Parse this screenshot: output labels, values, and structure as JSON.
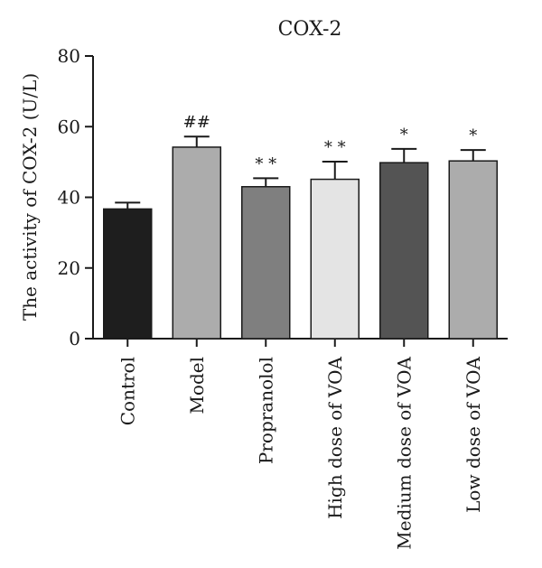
{
  "chart_data": {
    "type": "bar",
    "title": "COX-2",
    "xlabel": "",
    "ylabel": "The activity of COX-2 (U/L)",
    "ylim": [
      0,
      80
    ],
    "yticks": [
      0,
      20,
      40,
      60,
      80
    ],
    "grid": false,
    "categories": [
      "Control",
      "Model",
      "Propranolol",
      "High dose of VOA",
      "Medium dose of VOA",
      "Low dose of VOA"
    ],
    "values": [
      36.7,
      54.2,
      43.0,
      45.1,
      49.8,
      50.3
    ],
    "errors": [
      1.8,
      3.0,
      2.4,
      5.0,
      3.9,
      3.1
    ],
    "annotations": [
      "",
      "##",
      "* *",
      "* *",
      "*",
      "*"
    ],
    "colors": [
      "#1e1e1e",
      "#acacac",
      "#7f7f7f",
      "#e4e4e4",
      "#545454",
      "#acacac"
    ]
  }
}
